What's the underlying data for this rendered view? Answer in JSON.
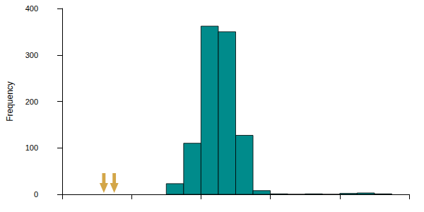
{
  "chart_data": {
    "type": "histogram",
    "bins": [
      1.5,
      1.75,
      2,
      2.25,
      2.5,
      2.75,
      3,
      3.25,
      3.5,
      3.75,
      4,
      4.25,
      4.5,
      4.75
    ],
    "values": [
      23,
      110,
      362,
      350,
      127,
      8,
      1,
      0,
      1,
      0,
      2,
      3,
      1
    ],
    "color": "#008b8b",
    "y_label": "Frequency",
    "xlim": [
      0,
      5
    ],
    "xticks": [
      0,
      1,
      2,
      3,
      4,
      5
    ],
    "ylim": [
      0,
      400
    ],
    "yticks": [
      0,
      100,
      200,
      300,
      400
    ],
    "grid": false,
    "tick_labels": "y",
    "arrows": {
      "x": [
        0.6,
        0.75
      ],
      "color": "#c8901a",
      "marker": "arrow"
    }
  }
}
